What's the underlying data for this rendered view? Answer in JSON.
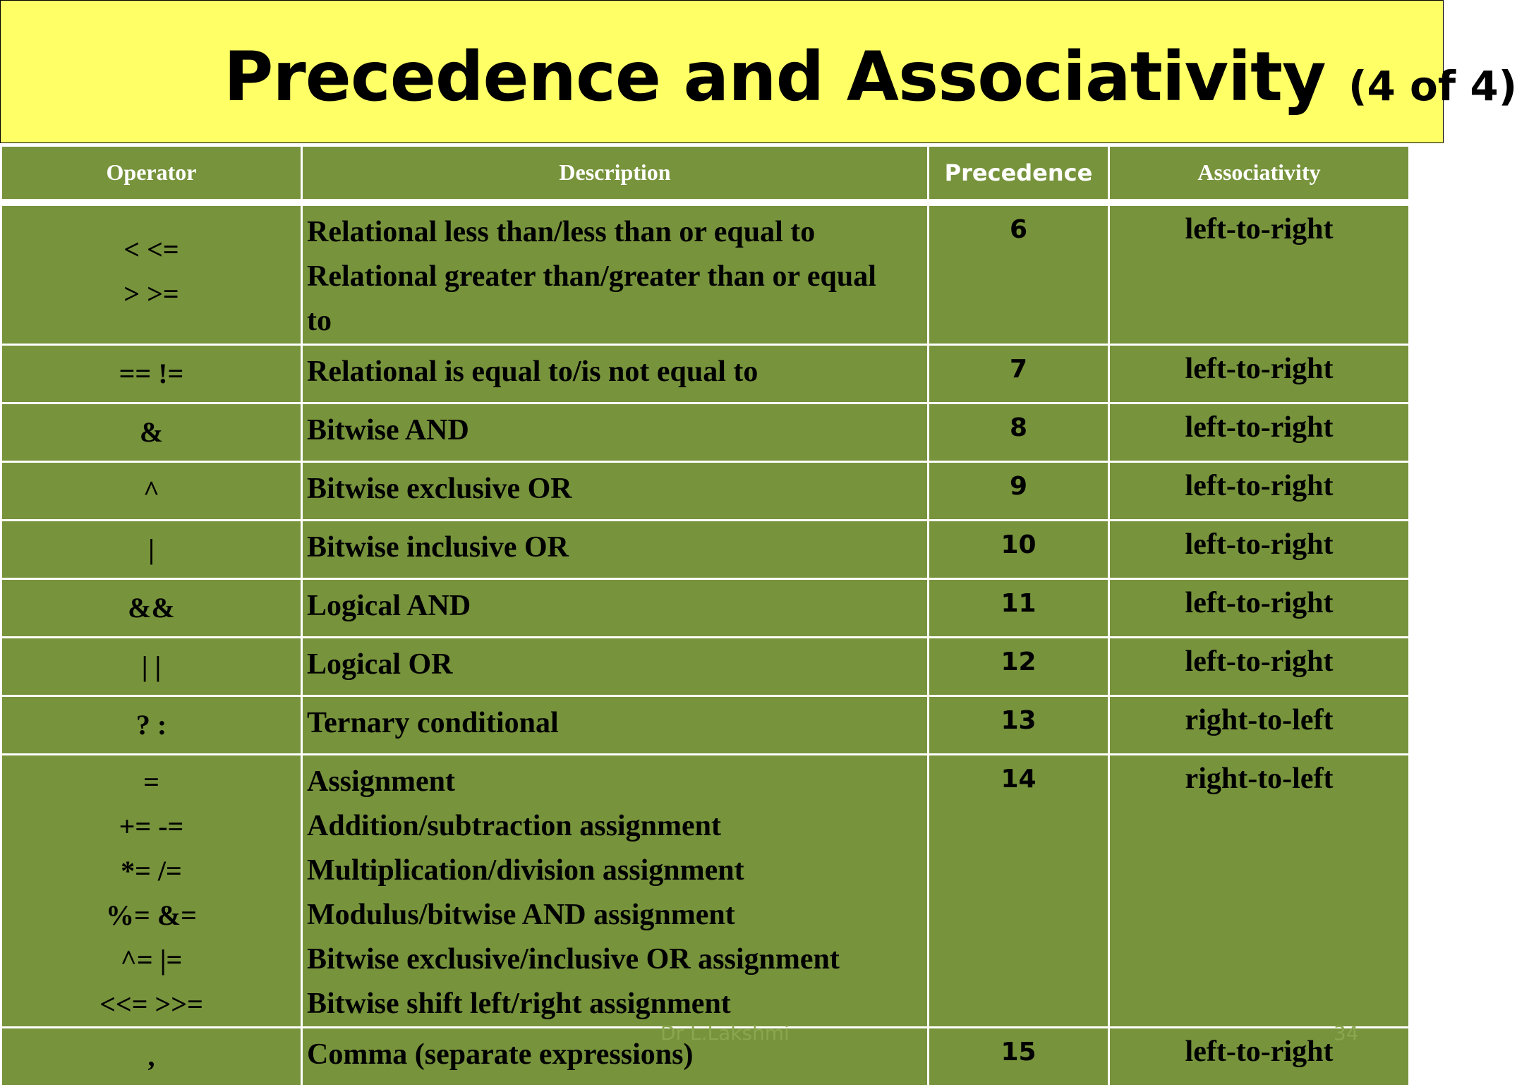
{
  "title": {
    "main": "Precedence and Associativity",
    "suffix": "(4 of 4)"
  },
  "table": {
    "headers": [
      "Operator",
      "Description",
      "Precedence",
      "Associativity"
    ],
    "rows": [
      {
        "operators": [
          "< <=",
          "> >="
        ],
        "description": "Relational less than/less than or equal to\nRelational greater than/greater than or equal\nto",
        "precedence": "6",
        "associativity": "left-to-right"
      },
      {
        "operators": [
          "== !="
        ],
        "description": "Relational is equal to/is not equal to",
        "precedence": "7",
        "associativity": "left-to-right"
      },
      {
        "operators": [
          "&"
        ],
        "description": "Bitwise AND",
        "precedence": "8",
        "associativity": "left-to-right"
      },
      {
        "operators": [
          "^"
        ],
        "description": "Bitwise exclusive OR",
        "precedence": "9",
        "associativity": "left-to-right"
      },
      {
        "operators": [
          "|"
        ],
        "description": "Bitwise inclusive OR",
        "precedence": "10",
        "associativity": "left-to-right"
      },
      {
        "operators": [
          "&&"
        ],
        "description": "Logical AND",
        "precedence": "11",
        "associativity": "left-to-right"
      },
      {
        "operators": [
          "| |"
        ],
        "description": "Logical OR",
        "precedence": "12",
        "associativity": "left-to-right"
      },
      {
        "operators": [
          "? :"
        ],
        "description": "Ternary conditional",
        "precedence": "13",
        "associativity": "right-to-left"
      },
      {
        "operators": [
          "=",
          "+= -=",
          "*= /=",
          "%= &=",
          "^= |=",
          "<<= >>="
        ],
        "description": "Assignment\nAddition/subtraction assignment\nMultiplication/division assignment\nModulus/bitwise AND assignment\nBitwise exclusive/inclusive OR assignment\nBitwise shift left/right assignment",
        "precedence": "14",
        "associativity": "right-to-left"
      },
      {
        "operators": [
          ","
        ],
        "description": "Comma (separate expressions)",
        "precedence": "15",
        "associativity": "left-to-right"
      }
    ]
  },
  "footer": {
    "author": "Dr L.Lakshmi",
    "page": "34"
  }
}
